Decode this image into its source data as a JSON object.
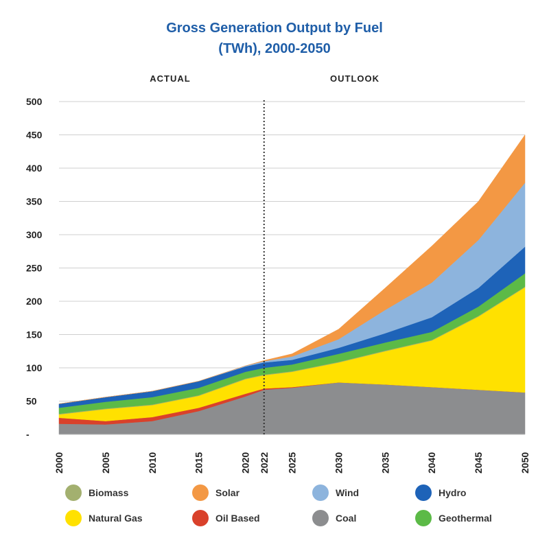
{
  "title_line1": "Gross Generation Output by Fuel",
  "title_line2": "(TWh), 2000-2050",
  "chart_data": {
    "type": "area",
    "stacked": true,
    "title": "Gross Generation Output by Fuel (TWh), 2000-2050",
    "phase_labels": {
      "actual": "ACTUAL",
      "outlook": "OUTLOOK"
    },
    "divider_year": 2022,
    "x": [
      2000,
      2005,
      2010,
      2015,
      2020,
      2022,
      2025,
      2030,
      2035,
      2040,
      2045,
      2050
    ],
    "x_tick_labels": [
      "2000",
      "2005",
      "2010",
      "2015",
      "2020",
      "2022",
      "2025",
      "2030",
      "2035",
      "2040",
      "2045",
      "2050"
    ],
    "y_tick_labels": [
      "-",
      "50",
      "100",
      "150",
      "200",
      "250",
      "300",
      "350",
      "400",
      "450",
      "500"
    ],
    "ylim": [
      0,
      500
    ],
    "grid": true,
    "legend_position": "bottom",
    "series": [
      {
        "name": "Coal",
        "color": "#8c8d8f",
        "values": [
          16,
          15,
          20,
          35,
          57,
          67,
          70,
          78,
          75,
          71,
          67,
          63
        ]
      },
      {
        "name": "Oil Based",
        "color": "#d9412b",
        "values": [
          9,
          5,
          6,
          5,
          4,
          2,
          1,
          0,
          0,
          0,
          0,
          0
        ]
      },
      {
        "name": "Natural Gas",
        "color": "#ffe100",
        "values": [
          5,
          18,
          18,
          18,
          22,
          20,
          23,
          30,
          50,
          70,
          110,
          158
        ]
      },
      {
        "name": "Biomass",
        "color": "#a3b06f",
        "values": [
          1,
          1,
          1,
          1,
          1,
          1,
          1,
          1,
          1,
          1,
          1,
          1
        ]
      },
      {
        "name": "Geothermal",
        "color": "#5cba47",
        "values": [
          9,
          10,
          11,
          11,
          10,
          10,
          10,
          12,
          12,
          12,
          14,
          20
        ]
      },
      {
        "name": "Hydro",
        "color": "#1e63b8",
        "values": [
          6,
          7,
          9,
          10,
          8,
          8,
          7,
          9,
          14,
          22,
          28,
          40
        ]
      },
      {
        "name": "Wind",
        "color": "#8db4dd",
        "values": [
          0,
          0,
          0,
          0,
          1,
          2,
          5,
          13,
          35,
          52,
          72,
          96
        ]
      },
      {
        "name": "Solar",
        "color": "#f39844",
        "values": [
          0,
          0,
          0,
          0,
          0,
          1,
          4,
          15,
          33,
          55,
          58,
          72
        ]
      }
    ]
  },
  "legend": [
    {
      "label": "Biomass",
      "color": "#a3b06f"
    },
    {
      "label": "Solar",
      "color": "#f39844"
    },
    {
      "label": "Wind",
      "color": "#8db4dd"
    },
    {
      "label": "Hydro",
      "color": "#1e63b8"
    },
    {
      "label": "Natural Gas",
      "color": "#ffe100"
    },
    {
      "label": "Oil Based",
      "color": "#d9412b"
    },
    {
      "label": "Coal",
      "color": "#8c8d8f"
    },
    {
      "label": "Geothermal",
      "color": "#5cba47"
    }
  ]
}
